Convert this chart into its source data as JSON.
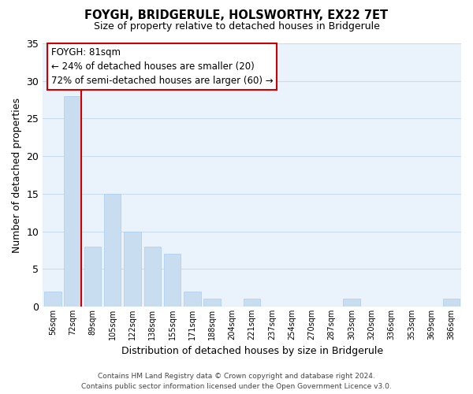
{
  "title": "FOYGH, BRIDGERULE, HOLSWORTHY, EX22 7ET",
  "subtitle": "Size of property relative to detached houses in Bridgerule",
  "xlabel": "Distribution of detached houses by size in Bridgerule",
  "ylabel": "Number of detached properties",
  "bar_color": "#c8ddf0",
  "bar_edge_color": "#aaccee",
  "marker_line_color": "#cc0000",
  "background_color": "#ffffff",
  "plot_bg_color": "#eaf2fb",
  "grid_color": "#c8ddf0",
  "categories": [
    "56sqm",
    "72sqm",
    "89sqm",
    "105sqm",
    "122sqm",
    "138sqm",
    "155sqm",
    "171sqm",
    "188sqm",
    "204sqm",
    "221sqm",
    "237sqm",
    "254sqm",
    "270sqm",
    "287sqm",
    "303sqm",
    "320sqm",
    "336sqm",
    "353sqm",
    "369sqm",
    "386sqm"
  ],
  "values": [
    2,
    28,
    8,
    15,
    10,
    8,
    7,
    2,
    1,
    0,
    1,
    0,
    0,
    0,
    0,
    1,
    0,
    0,
    0,
    0,
    1
  ],
  "ylim": [
    0,
    35
  ],
  "yticks": [
    0,
    5,
    10,
    15,
    20,
    25,
    30,
    35
  ],
  "marker_bar_index": 1,
  "annotation_title": "FOYGH: 81sqm",
  "annotation_line1": "← 24% of detached houses are smaller (20)",
  "annotation_line2": "72% of semi-detached houses are larger (60) →",
  "annotation_box_color": "#ffffff",
  "annotation_border_color": "#cc0000",
  "footer_line1": "Contains HM Land Registry data © Crown copyright and database right 2024.",
  "footer_line2": "Contains public sector information licensed under the Open Government Licence v3.0."
}
